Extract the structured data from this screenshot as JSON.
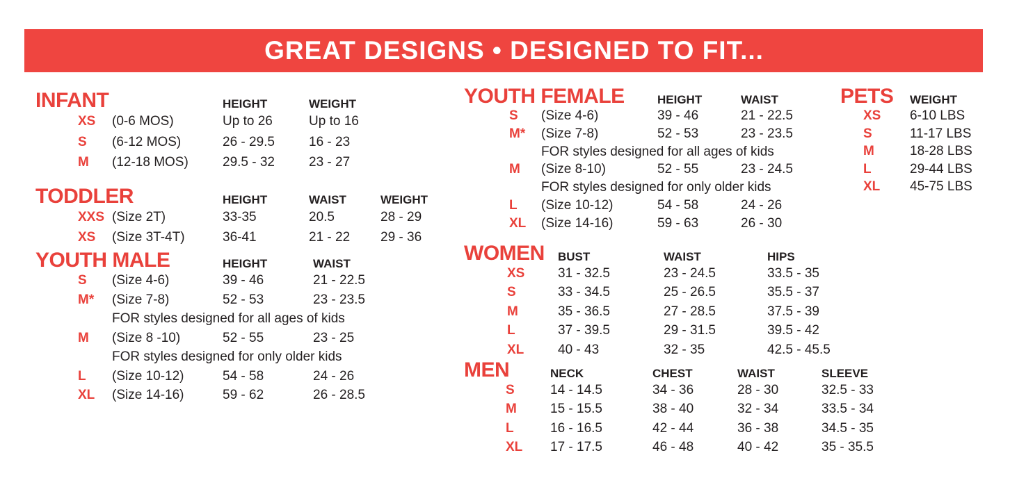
{
  "banner": {
    "title": "GREAT DESIGNS • DESIGNED TO FIT..."
  },
  "colors": {
    "banner_red": "#EF4540",
    "accent_red": "#E9413B",
    "text": "#231F20",
    "background": "#FFFFFF"
  },
  "sections": {
    "infant": {
      "title": "INFANT",
      "columns": [
        "HEIGHT",
        "WEIGHT"
      ],
      "rows": [
        {
          "size": "XS",
          "desc": "(0-6 MOS)",
          "values": [
            "Up to 26",
            "Up to 16"
          ]
        },
        {
          "size": "S",
          "desc": "(6-12 MOS)",
          "values": [
            "26 - 29.5",
            "16 - 23"
          ]
        },
        {
          "size": "M",
          "desc": "(12-18 MOS)",
          "values": [
            "29.5 - 32",
            "23 - 27"
          ]
        }
      ]
    },
    "toddler": {
      "title": "TODDLER",
      "columns": [
        "HEIGHT",
        "WAIST",
        "WEIGHT"
      ],
      "rows": [
        {
          "size": "XXS",
          "desc": "(Size 2T)",
          "values": [
            "33-35",
            "20.5",
            "28 - 29"
          ]
        },
        {
          "size": "XS",
          "desc": "(Size 3T-4T)",
          "values": [
            "36-41",
            "21 - 22",
            "29 - 36"
          ]
        }
      ]
    },
    "youth_male": {
      "title": "YOUTH MALE",
      "columns": [
        "HEIGHT",
        "WAIST"
      ],
      "rows": [
        {
          "size": "S",
          "desc": "(Size 4-6)",
          "values": [
            "39 - 46",
            "21 - 22.5"
          ]
        },
        {
          "size": "M*",
          "desc": "(Size 7-8)",
          "values": [
            "52 - 53",
            "23 - 23.5"
          ]
        },
        {
          "note": "FOR styles designed for all ages of kids"
        },
        {
          "size": "M",
          "desc": "(Size 8 -10)",
          "values": [
            "52 - 55",
            "23 - 25"
          ]
        },
        {
          "note": "FOR styles designed for only older kids"
        },
        {
          "size": "L",
          "desc": "(Size 10-12)",
          "values": [
            "54 - 58",
            "24 - 26"
          ]
        },
        {
          "size": "XL",
          "desc": "(Size 14-16)",
          "values": [
            "59 - 62",
            "26 - 28.5"
          ]
        }
      ]
    },
    "youth_female": {
      "title": "YOUTH FEMALE",
      "columns": [
        "HEIGHT",
        "WAIST"
      ],
      "rows": [
        {
          "size": "S",
          "desc": "(Size 4-6)",
          "values": [
            "39 - 46",
            "21 - 22.5"
          ]
        },
        {
          "size": "M*",
          "desc": "(Size 7-8)",
          "values": [
            "52 - 53",
            "23 - 23.5"
          ]
        },
        {
          "note": "FOR styles designed for all ages of kids"
        },
        {
          "size": "M",
          "desc": "(Size 8-10)",
          "values": [
            "52 - 55",
            "23 - 24.5"
          ]
        },
        {
          "note": "FOR styles designed for only older kids"
        },
        {
          "size": "L",
          "desc": "(Size 10-12)",
          "values": [
            "54 - 58",
            "24 - 26"
          ]
        },
        {
          "size": "XL",
          "desc": "(Size 14-16)",
          "values": [
            "59 - 63",
            "26 - 30"
          ]
        }
      ]
    },
    "women": {
      "title": "WOMEN",
      "columns": [
        "BUST",
        "WAIST",
        "HIPS"
      ],
      "rows": [
        {
          "size": "XS",
          "values": [
            "31 - 32.5",
            "23 - 24.5",
            "33.5 - 35"
          ]
        },
        {
          "size": "S",
          "values": [
            "33 - 34.5",
            "25 - 26.5",
            "35.5 - 37"
          ]
        },
        {
          "size": "M",
          "values": [
            "35 - 36.5",
            "27 - 28.5",
            "37.5 - 39"
          ]
        },
        {
          "size": "L",
          "values": [
            "37 - 39.5",
            "29 - 31.5",
            "39.5 - 42"
          ]
        },
        {
          "size": "XL",
          "values": [
            "40 - 43",
            "32 - 35",
            "42.5 - 45.5"
          ]
        }
      ]
    },
    "men": {
      "title": "MEN",
      "columns": [
        "NECK",
        "CHEST",
        "WAIST",
        "SLEEVE"
      ],
      "rows": [
        {
          "size": "S",
          "values": [
            "14 - 14.5",
            "34 - 36",
            "28 - 30",
            "32.5 - 33"
          ]
        },
        {
          "size": "M",
          "values": [
            "15 - 15.5",
            "38 - 40",
            "32 - 34",
            "33.5 - 34"
          ]
        },
        {
          "size": "L",
          "values": [
            "16 - 16.5",
            "42 - 44",
            "36 - 38",
            "34.5 - 35"
          ]
        },
        {
          "size": "XL",
          "values": [
            "17 - 17.5",
            "46 - 48",
            "40 - 42",
            "35 - 35.5"
          ]
        }
      ]
    },
    "pets": {
      "title": "PETS",
      "columns": [
        "WEIGHT"
      ],
      "rows": [
        {
          "size": "XS",
          "values": [
            "6-10 LBS"
          ]
        },
        {
          "size": "S",
          "values": [
            "11-17 LBS"
          ]
        },
        {
          "size": "M",
          "values": [
            "18-28 LBS"
          ]
        },
        {
          "size": "L",
          "values": [
            "29-44 LBS"
          ]
        },
        {
          "size": "XL",
          "values": [
            "45-75 LBS"
          ]
        }
      ]
    }
  }
}
